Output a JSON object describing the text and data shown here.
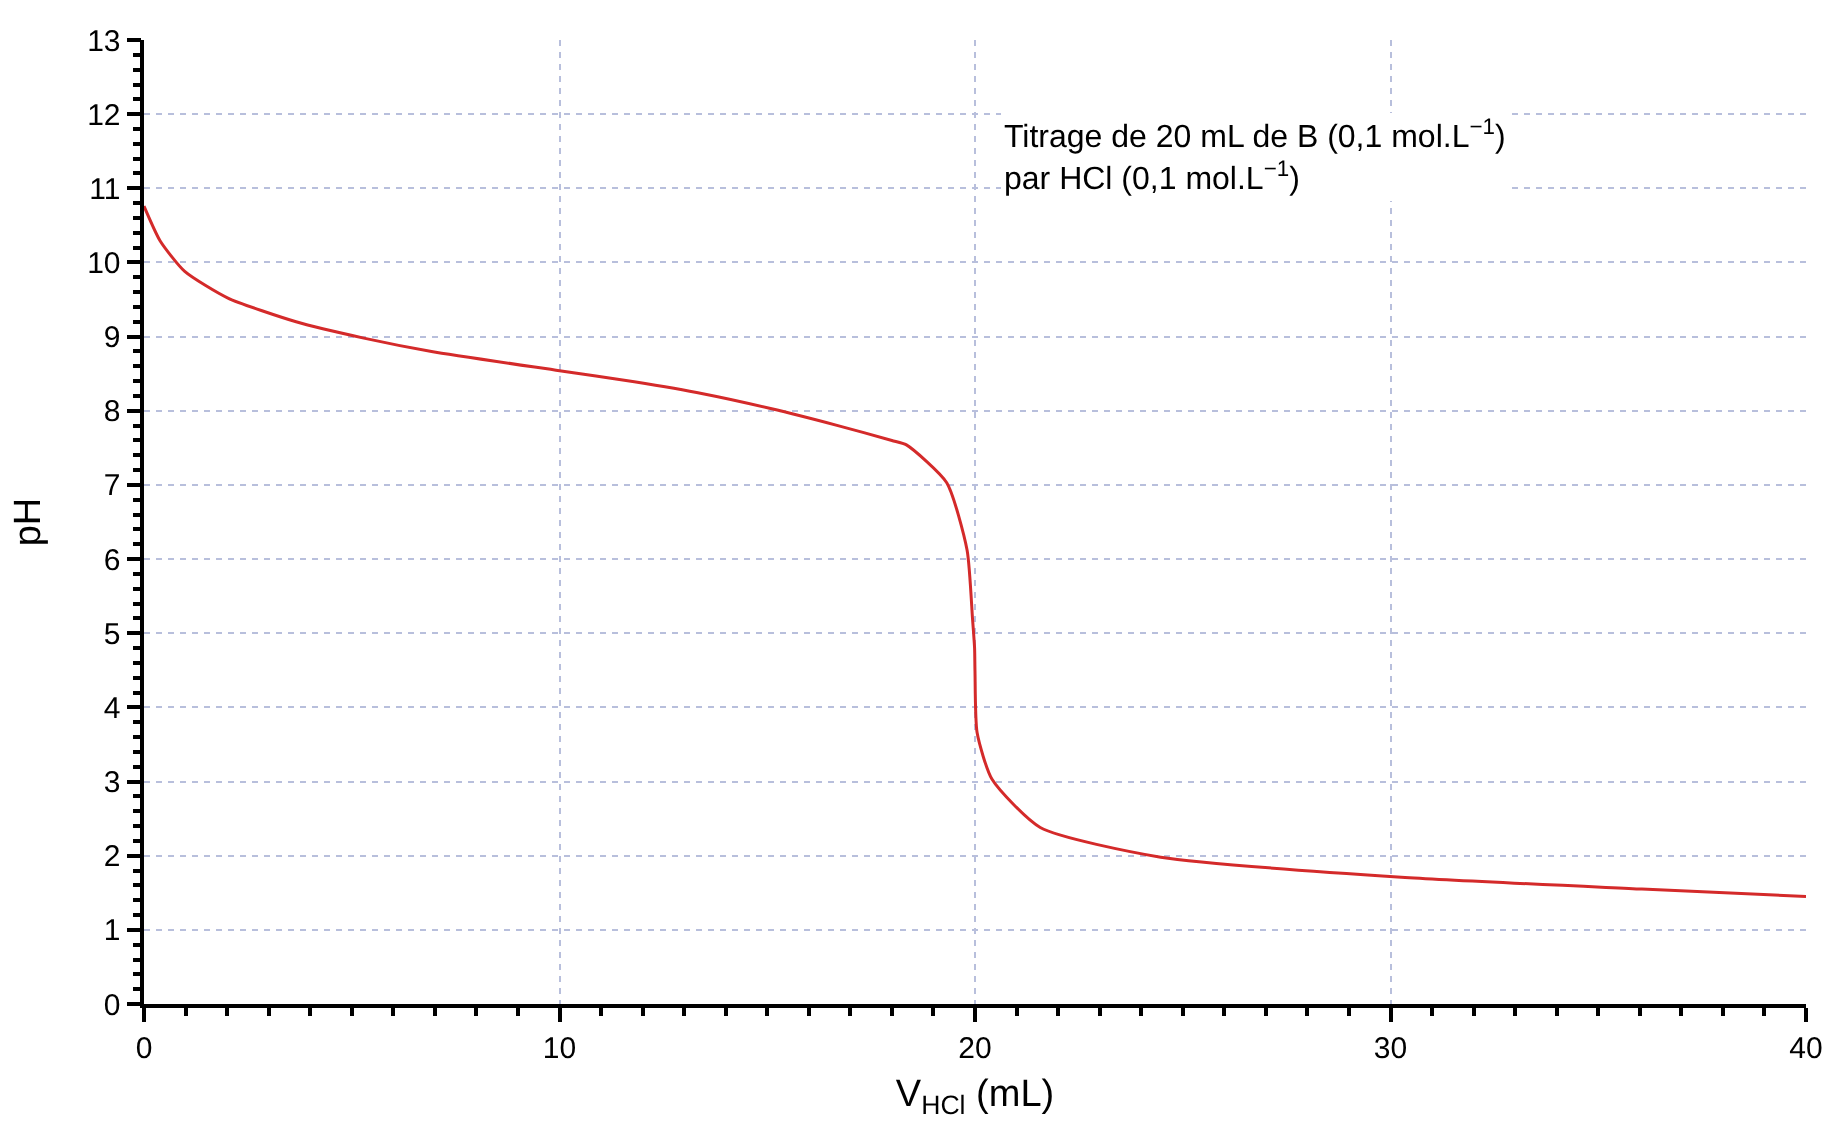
{
  "chart_data": {
    "type": "line",
    "xlabel": "V$_{HCl}$ (mL)",
    "ylabel": "pH",
    "annotations": [
      "Titrage de 20 mL de B (0,1 mol.L$^{−1}$)\npar HCl (0,1 mol.L$^{−1}$)"
    ],
    "series": [
      {
        "color": "#d42a2a",
        "x": [
          0,
          0.39,
          0.98,
          2.02,
          3.66,
          5.29,
          6.92,
          10,
          11.8,
          13.45,
          15.08,
          16.7,
          18.0,
          18.35,
          19.32,
          19.81,
          19.94,
          19.99,
          20.0,
          20.05,
          20.41,
          21.57,
          24.47,
          30.26,
          36.05,
          40
        ],
        "values": [
          10.76,
          10.29,
          9.88,
          9.52,
          9.2,
          8.98,
          8.8,
          8.54,
          8.39,
          8.23,
          8.03,
          7.8,
          7.6,
          7.54,
          7.03,
          6.12,
          5.2,
          4.8,
          4.48,
          3.66,
          3.03,
          2.38,
          1.98,
          1.71,
          1.55,
          1.45
        ]
      }
    ],
    "xlim": [
      0,
      40
    ],
    "xticks": [
      0,
      10,
      20,
      30,
      40
    ],
    "ylim": [
      0,
      13
    ],
    "yticks": [
      0,
      1,
      2,
      3,
      4,
      5,
      6,
      7,
      8,
      9,
      10,
      11,
      12,
      13
    ],
    "grid": true,
    "marker": "none",
    "line_style": "solid"
  }
}
